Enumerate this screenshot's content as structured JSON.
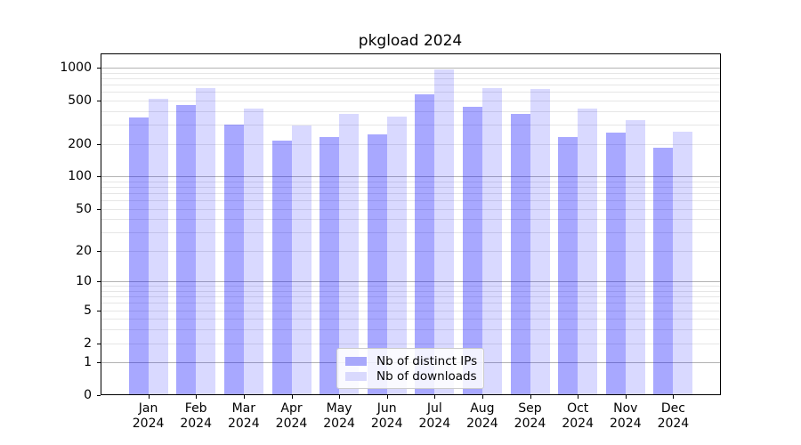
{
  "title": "pkgload 2024",
  "chart_data": {
    "type": "bar",
    "title": "pkgload 2024",
    "categories": [
      "Jan",
      "Feb",
      "Mar",
      "Apr",
      "May",
      "Jun",
      "Jul",
      "Aug",
      "Sep",
      "Oct",
      "Nov",
      "Dec"
    ],
    "x_year_label": "2024",
    "series": [
      {
        "name": "Nb of distinct IPs",
        "color": "rgba(0,0,255,0.34)",
        "legend_color": "#a8a8fb",
        "values": [
          349,
          455,
          299,
          214,
          229,
          243,
          570,
          436,
          379,
          231,
          252,
          184
        ]
      },
      {
        "name": "Nb of downloads",
        "color": "rgba(0,0,255,0.15)",
        "legend_color": "#d9d9fd",
        "values": [
          517,
          646,
          421,
          295,
          374,
          358,
          955,
          654,
          634,
          418,
          329,
          256
        ]
      }
    ],
    "yscale": "log1p",
    "yticks": [
      0,
      1,
      2,
      5,
      10,
      20,
      50,
      100,
      200,
      500,
      1000
    ],
    "grid_major": [
      1,
      10,
      100,
      1000
    ],
    "ylim": [
      0,
      1350
    ],
    "xlabel": "",
    "ylabel": "",
    "grid": "on",
    "legend_position": "lower center"
  },
  "colors": {
    "grid_major": "#b3b3b3",
    "grid_minor": "#e6e6e6",
    "axis": "#000000",
    "background": "#ffffff"
  }
}
